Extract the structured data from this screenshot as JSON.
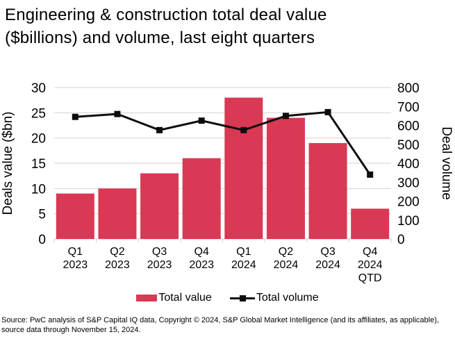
{
  "title": {
    "line1": "Engineering & construction total deal value",
    "line2": "($billions) and volume, last eight quarters"
  },
  "chart_data": {
    "type": "bar+line combo, dual axis",
    "categories": [
      [
        "Q1",
        "2023"
      ],
      [
        "Q2",
        "2023"
      ],
      [
        "Q3",
        "2023"
      ],
      [
        "Q4",
        "2023"
      ],
      [
        "Q1",
        "2024"
      ],
      [
        "Q2",
        "2024"
      ],
      [
        "Q3",
        "2024"
      ],
      [
        "Q4",
        "2024",
        "QTD"
      ]
    ],
    "series": [
      {
        "name": "Total value",
        "type": "bar",
        "axis": "left",
        "color": "#D93954",
        "values": [
          9,
          10,
          13,
          16,
          28,
          24,
          19,
          6
        ]
      },
      {
        "name": "Total volume",
        "type": "line",
        "axis": "right",
        "color": "#0d0d0d",
        "marker": "square",
        "values": [
          645,
          660,
          575,
          625,
          575,
          650,
          670,
          340
        ]
      }
    ],
    "left_axis": {
      "label": "Deals value ($bn)",
      "min": 0,
      "max": 30,
      "tick_step": 5,
      "ticks": [
        0,
        5,
        10,
        15,
        20,
        25,
        30
      ]
    },
    "right_axis": {
      "label": "Deal volume",
      "min": 0,
      "max": 800,
      "tick_step": 100,
      "ticks": [
        0,
        100,
        200,
        300,
        400,
        500,
        600,
        700,
        800
      ]
    },
    "grid": "horizontal",
    "gridline_color": "#d2d2d2",
    "legend_position": "bottom"
  },
  "legend": {
    "items": [
      {
        "label": "Total value",
        "swatch": "bar",
        "color": "#D93954"
      },
      {
        "label": "Total volume",
        "swatch": "line-marker",
        "color": "#0d0d0d"
      }
    ]
  },
  "source": {
    "line1": "Source: PwC analysis of S&P Capital IQ data, Copyright © 2024, S&P Global Market Intelligence (and its affiliates, as applicable),",
    "line2": "source data through November 15, 2024."
  }
}
